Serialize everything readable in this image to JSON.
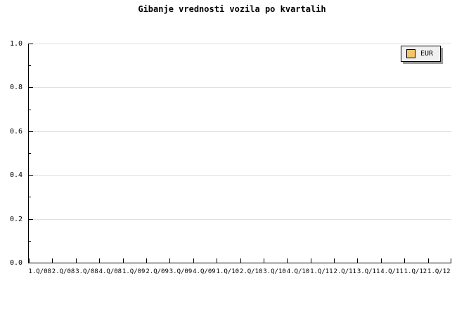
{
  "chart_data": {
    "type": "line",
    "title": "Gibanje vrednosti vozila po kvartalih",
    "categories": [
      "1.Q/08",
      "2.Q/08",
      "3.Q/08",
      "4.Q/08",
      "1.Q/09",
      "2.Q/09",
      "3.Q/09",
      "4.Q/09",
      "1.Q/10",
      "2.Q/10",
      "3.Q/10",
      "4.Q/10",
      "1.Q/11",
      "2.Q/11",
      "3.Q/11",
      "4.Q/11",
      "1.Q/12",
      "1.Q/12"
    ],
    "series": [
      {
        "name": "EUR",
        "color": "#F6C46C",
        "values": []
      }
    ],
    "ylim": [
      0.0,
      1.0
    ],
    "yticks": [
      {
        "value": 0.0,
        "label": "0.0"
      },
      {
        "value": 0.2,
        "label": "0.2"
      },
      {
        "value": 0.4,
        "label": "0.4"
      },
      {
        "value": 0.6,
        "label": "0.6"
      },
      {
        "value": 0.8,
        "label": "0.8"
      },
      {
        "value": 1.0,
        "label": "1.0"
      }
    ],
    "yticks_minor": [
      0.1,
      0.3,
      0.5,
      0.7,
      0.9
    ],
    "grid": true,
    "legend": {
      "position": "top-right",
      "entries": [
        {
          "label": "EUR",
          "color": "#F6C46C"
        }
      ]
    }
  },
  "colors": {
    "background": "#ffffff",
    "axis": "#000000",
    "gridline": "#e0e0e0",
    "text": "#000000",
    "legend_background": "#f0f0f0",
    "legend_border": "#000000",
    "legend_shadow": "#999999",
    "series_swatch": "#F6C46C"
  }
}
